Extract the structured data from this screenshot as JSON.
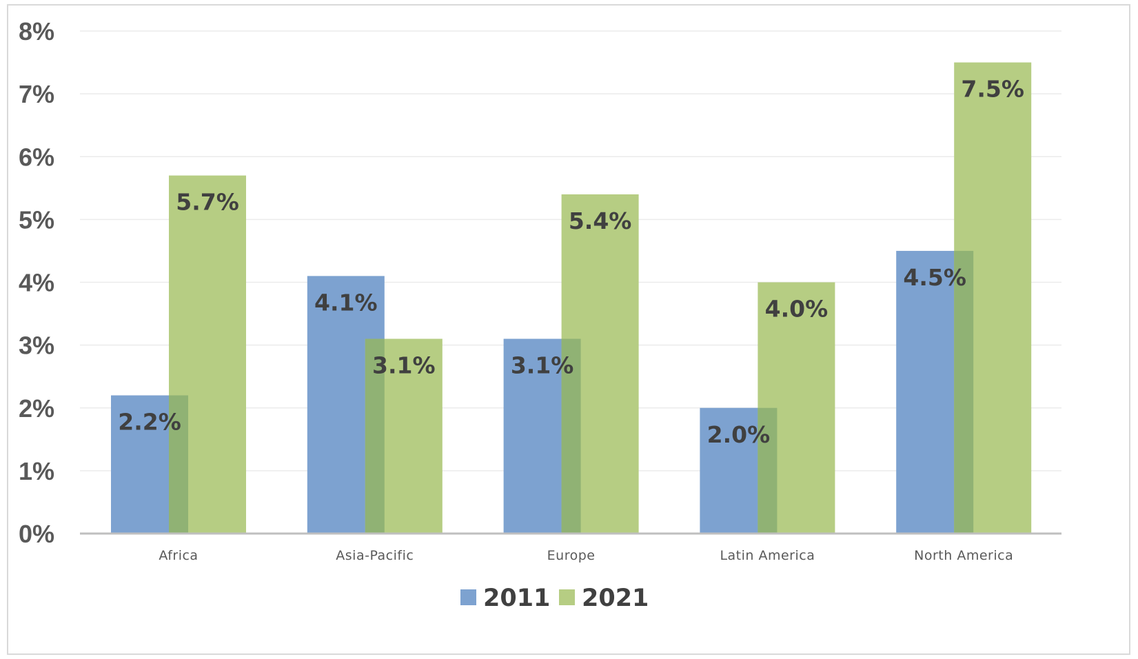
{
  "chart_data": {
    "type": "bar",
    "title": "",
    "xlabel": "",
    "ylabel": "",
    "categories": [
      "Africa",
      "Asia-Pacific",
      "Europe",
      "Latin America",
      "North America"
    ],
    "series": [
      {
        "name": "2011",
        "values": [
          2.2,
          4.1,
          3.1,
          2.0,
          4.5
        ],
        "labels": [
          "2.2%",
          "4.1%",
          "3.1%",
          "2.0%",
          "4.5%"
        ],
        "color": "#7da2d0"
      },
      {
        "name": "2021",
        "values": [
          5.7,
          3.1,
          5.4,
          4.0,
          7.5
        ],
        "labels": [
          "5.7%",
          "3.1%",
          "5.4%",
          "4.0%",
          "7.5%"
        ],
        "color": "#b6cd83"
      }
    ],
    "ylim": [
      0,
      8
    ],
    "yticks": [
      "0%",
      "1%",
      "2%",
      "3%",
      "4%",
      "5%",
      "6%",
      "7%",
      "8%"
    ],
    "overlap_color": "#90b274",
    "grid": true,
    "legend": "bottom"
  }
}
